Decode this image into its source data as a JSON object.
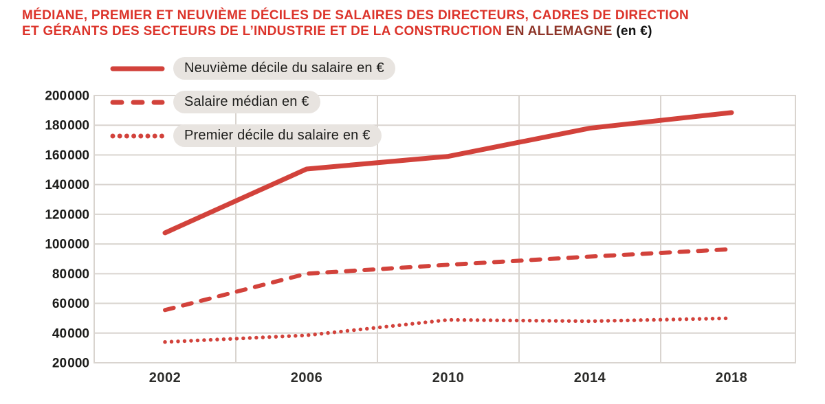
{
  "title": {
    "line1": "MÉDIANE, PREMIER ET NEUVIÈME DÉCILES DE SALAIRES DES DIRECTEURS, CADRES DE DIRECTION",
    "line2_red": "ET GÉRANTS DES SECTEURS DE L’INDUSTRIE ET DE LA CONSTRUCTION",
    "line2_em": "EN ALLEMAGNE",
    "line2_unit": "(en €)"
  },
  "colors": {
    "accent": "#d2423b",
    "title_red": "#dc332a",
    "title_dark": "#8d3428",
    "pill_bg": "#e8e4e0",
    "grid": "#d9d4cf",
    "text": "#1d1d1b",
    "axis_text": "#2c2c2a",
    "ytick_text": "#1b1b19"
  },
  "legend": {
    "items": [
      {
        "label": "Neuvième décile du salaire en €",
        "style": "solid"
      },
      {
        "label": "Salaire médian en €",
        "style": "dashed"
      },
      {
        "label": "Premier décile du salaire en €",
        "style": "dotted"
      }
    ]
  },
  "chart_data": {
    "type": "line",
    "title": "Médiane, premier et neuvième déciles de salaires des directeurs, cadres de direction et gérants des secteurs de l’industrie et de la construction en Allemagne (en €)",
    "xlabel": "",
    "ylabel": "",
    "x": [
      2002,
      2006,
      2010,
      2014,
      2018
    ],
    "xtick_labels": [
      "2002",
      "2006",
      "2010",
      "2014",
      "2018"
    ],
    "series": [
      {
        "name": "Neuvième décile du salaire en €",
        "style": "solid",
        "values": [
          107500,
          150500,
          159000,
          178000,
          188500
        ]
      },
      {
        "name": "Salaire médian en €",
        "style": "dashed",
        "values": [
          55500,
          80000,
          86000,
          91500,
          96500
        ]
      },
      {
        "name": "Premier décile du salaire en €",
        "style": "dotted",
        "values": [
          34000,
          38500,
          48900,
          48000,
          50000
        ]
      }
    ],
    "ylim": [
      20000,
      200000
    ],
    "yticks": [
      {
        "v": 20000,
        "label": "20 000"
      },
      {
        "v": 40000,
        "label": "40 000"
      },
      {
        "v": 60000,
        "label": "60 000"
      },
      {
        "v": 80000,
        "label": "80 000"
      },
      {
        "v": 100000,
        "label": "100 000"
      },
      {
        "v": 120000,
        "label": "120 000"
      },
      {
        "v": 140000,
        "label": "140 000"
      },
      {
        "v": 160000,
        "label": "160 000"
      },
      {
        "v": 180000,
        "label": "180 000"
      },
      {
        "v": 200000,
        "label": "200 000"
      }
    ],
    "grid": true,
    "grid_x_years": [
      2004,
      2008,
      2012,
      2016
    ],
    "legend_position": "top-left"
  }
}
